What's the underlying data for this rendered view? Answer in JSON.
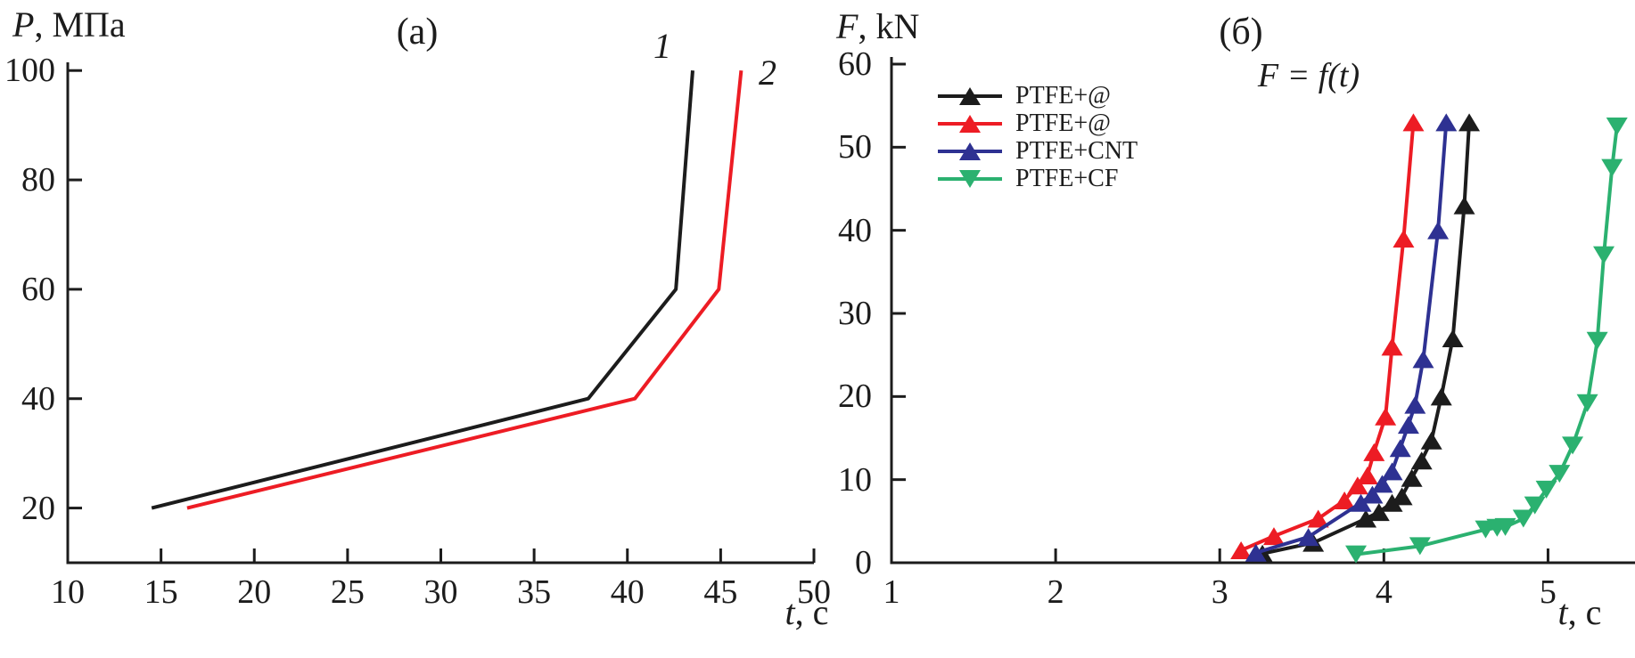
{
  "panel_a": {
    "label": "(a)",
    "ylabel_var": "P",
    "ylabel_rest": ", МПа",
    "xlabel_var": "t",
    "xlabel_rest": ", с",
    "curve_label_1": "1",
    "curve_label_2": "2"
  },
  "panel_b": {
    "label": "(б)",
    "ylabel_var": "F",
    "ylabel_rest": ", kN",
    "xlabel_var": "t",
    "xlabel_rest": ", с",
    "annotation": "F = f(t)",
    "legend": [
      {
        "label": "PTFE+@",
        "color": "#1c1c1c",
        "marker": "triangle-up"
      },
      {
        "label": "PTFE+@",
        "color": "#ed1c24",
        "marker": "triangle-up"
      },
      {
        "label": "PTFE+CNT",
        "color": "#2e3192",
        "marker": "triangle-up"
      },
      {
        "label": "PTFE+CF",
        "color": "#2bb170",
        "marker": "triangle-down"
      }
    ]
  },
  "colors": {
    "black": "#1c1c1c",
    "red": "#ed1c24",
    "blue": "#2e3192",
    "green": "#2bb170"
  },
  "chart_data": [
    {
      "type": "line",
      "panel": "a",
      "title": "(a)",
      "xlabel": "t, с",
      "ylabel": "P, МПа",
      "xlim": [
        10,
        50
      ],
      "xticks": [
        10,
        15,
        20,
        25,
        30,
        35,
        40,
        45,
        50
      ],
      "ylim": [
        10,
        101.5
      ],
      "yticks": [
        20,
        40,
        60,
        80,
        100
      ],
      "grid": false,
      "legend_position": "none",
      "series": [
        {
          "name": "1",
          "color": "#1c1c1c",
          "marker": "none",
          "points": [
            [
              14.5,
              20
            ],
            [
              37.9,
              40
            ],
            [
              42.6,
              60
            ],
            [
              43.5,
              100
            ]
          ]
        },
        {
          "name": "2",
          "color": "#ed1c24",
          "marker": "none",
          "points": [
            [
              16.4,
              20
            ],
            [
              40.4,
              40
            ],
            [
              44.9,
              60
            ],
            [
              46.1,
              100
            ]
          ]
        }
      ]
    },
    {
      "type": "line",
      "panel": "б",
      "title": "(б)",
      "annotation": "F = f(t)",
      "xlabel": "t, с",
      "ylabel": "F, kN",
      "xlim": [
        1,
        5.53
      ],
      "xticks": [
        1,
        2,
        3,
        4,
        5
      ],
      "ylim": [
        0,
        60
      ],
      "yticks": [
        0,
        10,
        20,
        30,
        40,
        50,
        60
      ],
      "grid": false,
      "legend_position": "upper left",
      "series": [
        {
          "name": "PTFE+@",
          "color": "#1c1c1c",
          "marker": "triangle-up",
          "points": [
            [
              3.26,
              1.1
            ],
            [
              3.57,
              2.4
            ],
            [
              3.89,
              5.3
            ],
            [
              3.97,
              6.1
            ],
            [
              4.05,
              7.2
            ],
            [
              4.11,
              8.0
            ],
            [
              4.17,
              10.2
            ],
            [
              4.23,
              12.3
            ],
            [
              4.29,
              14.7
            ],
            [
              4.35,
              20.0
            ],
            [
              4.42,
              27.0
            ],
            [
              4.49,
              43.0
            ],
            [
              4.52,
              53.0
            ]
          ]
        },
        {
          "name": "PTFE+@",
          "color": "#ed1c24",
          "marker": "triangle-up",
          "points": [
            [
              3.13,
              1.5
            ],
            [
              3.33,
              3.2
            ],
            [
              3.6,
              5.3
            ],
            [
              3.76,
              7.5
            ],
            [
              3.84,
              9.3
            ],
            [
              3.9,
              10.5
            ],
            [
              3.94,
              13.3
            ],
            [
              4.01,
              17.6
            ],
            [
              4.05,
              26.0
            ],
            [
              4.12,
              39.0
            ],
            [
              4.18,
              53.0
            ]
          ]
        },
        {
          "name": "PTFE+CNT",
          "color": "#2e3192",
          "marker": "triangle-up",
          "points": [
            [
              3.22,
              1.2
            ],
            [
              3.54,
              3.1
            ],
            [
              3.86,
              7.2
            ],
            [
              3.93,
              8.2
            ],
            [
              3.99,
              9.5
            ],
            [
              4.05,
              11.0
            ],
            [
              4.1,
              13.8
            ],
            [
              4.15,
              16.6
            ],
            [
              4.19,
              19.0
            ],
            [
              4.24,
              24.5
            ],
            [
              4.33,
              40.0
            ],
            [
              4.38,
              53.0
            ]
          ]
        },
        {
          "name": "PTFE+CF",
          "color": "#2bb170",
          "marker": "triangle-down",
          "points": [
            [
              3.83,
              1.0
            ],
            [
              4.22,
              2.0
            ],
            [
              4.62,
              4.0
            ],
            [
              4.69,
              4.2
            ],
            [
              4.74,
              4.3
            ],
            [
              4.85,
              5.3
            ],
            [
              4.92,
              6.9
            ],
            [
              4.99,
              8.8
            ],
            [
              5.07,
              10.7
            ],
            [
              5.15,
              14.1
            ],
            [
              5.24,
              19.2
            ],
            [
              5.3,
              26.7
            ],
            [
              5.34,
              37.0
            ],
            [
              5.39,
              47.5
            ],
            [
              5.42,
              52.5
            ]
          ]
        }
      ]
    }
  ]
}
